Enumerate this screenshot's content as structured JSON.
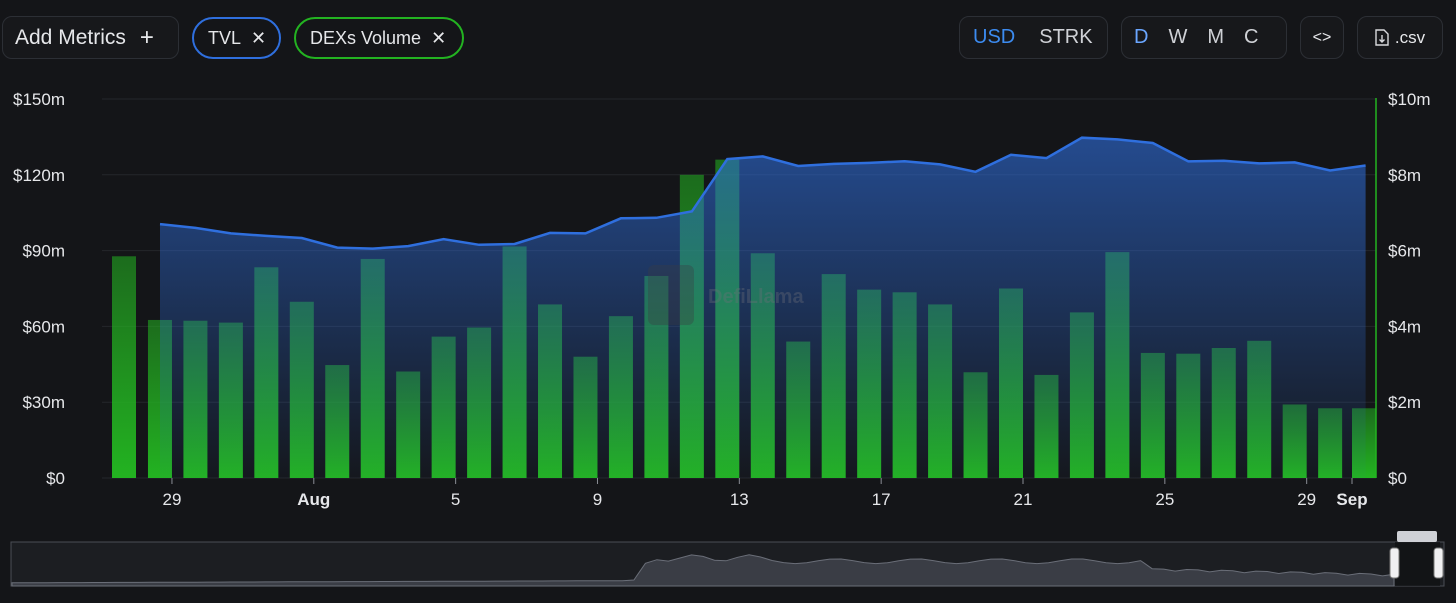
{
  "toolbar": {
    "add_metrics": "Add Metrics",
    "add_icon": "+",
    "pills": [
      {
        "label": "TVL",
        "color": "#2f6fde"
      },
      {
        "label": "DEXs Volume",
        "color": "#23b321"
      }
    ],
    "close_icon": "✕",
    "currency": {
      "options": [
        "USD",
        "STRK"
      ],
      "selected": "USD"
    },
    "period": {
      "options": [
        "D",
        "W",
        "M",
        "C"
      ],
      "selected": "D"
    },
    "embed_icon": "<>",
    "csv_label": ".csv"
  },
  "watermark": "DefiLlama",
  "chart_data": {
    "type": "bar+area",
    "x_ticks": [
      "29",
      "Aug",
      "5",
      "9",
      "13",
      "17",
      "21",
      "25",
      "29",
      "Sep"
    ],
    "x": [
      "Jul 28",
      "Jul 29",
      "Jul 30",
      "Jul 31",
      "Aug 1",
      "Aug 2",
      "Aug 3",
      "Aug 4",
      "Aug 5",
      "Aug 6",
      "Aug 7",
      "Aug 8",
      "Aug 9",
      "Aug 10",
      "Aug 11",
      "Aug 12",
      "Aug 13",
      "Aug 14",
      "Aug 15",
      "Aug 16",
      "Aug 17",
      "Aug 18",
      "Aug 19",
      "Aug 20",
      "Aug 21",
      "Aug 22",
      "Aug 23",
      "Aug 24",
      "Aug 25",
      "Aug 26",
      "Aug 27",
      "Aug 28",
      "Aug 29",
      "Aug 30",
      "Aug 31",
      "Sep 1"
    ],
    "left_axis": {
      "ticks": [
        "$0",
        "$30m",
        "$60m",
        "$90m",
        "$120m",
        "$150m"
      ],
      "ylim": [
        0,
        150000000
      ]
    },
    "right_axis": {
      "ticks": [
        "$0",
        "$2m",
        "$4m",
        "$6m",
        "$8m",
        "$10m"
      ],
      "ylim": [
        0,
        10000000
      ],
      "color": "#23b321"
    },
    "series": [
      {
        "name": "TVL",
        "type": "area",
        "axis": "left",
        "color": "#2f6fde",
        "values": [
          null,
          100500000,
          99000000,
          96800000,
          95800000,
          95000000,
          91200000,
          90800000,
          91800000,
          94500000,
          92300000,
          92600000,
          97000000,
          96800000,
          102800000,
          103000000,
          105500000,
          126200000,
          127300000,
          123500000,
          124300000,
          124700000,
          125400000,
          124100000,
          121200000,
          127900000,
          126600000,
          134700000,
          134000000,
          132600000,
          125300000,
          125600000,
          124500000,
          124900000,
          121700000,
          123700000
        ]
      },
      {
        "name": "DEXs Volume",
        "type": "bar",
        "axis": "right",
        "color": "#23b321",
        "values": [
          5850000,
          4170000,
          4150000,
          4100000,
          5560000,
          4650000,
          2980000,
          5780000,
          2810000,
          3730000,
          3970000,
          6110000,
          4580000,
          3200000,
          4270000,
          5330000,
          8000000,
          8400000,
          5930000,
          3600000,
          5380000,
          4970000,
          4900000,
          4580000,
          2790000,
          5000000,
          2720000,
          4370000,
          5960000,
          3300000,
          3280000,
          3430000,
          3620000,
          1940000,
          1840000,
          1840000
        ]
      }
    ]
  }
}
